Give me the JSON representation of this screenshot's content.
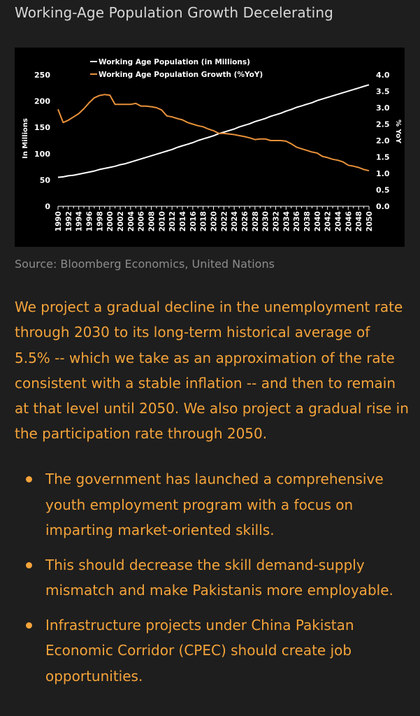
{
  "page": {
    "title": "Working-Age Population Growth Decelerating",
    "source": "Source: Bloomberg Economics, United Nations",
    "paragraph": "We project a gradual decline in the unemployment rate through 2030 to its long-term historical average of 5.5% -- which we take as an approximation of the rate consistent with a stable inflation -- and then to remain at that level until 2050. We also project a gradual rise in the participation rate through 2050.",
    "bullets": [
      "The government has launched a comprehensive youth employment program with a focus on imparting market-oriented skills.",
      "This should decrease the skill demand-supply mismatch and make Pakistanis more employable.",
      "Infrastructure projects under China Pakistan Economic Corridor (CPEC) should create job opportunities."
    ]
  },
  "colors": {
    "background": "#1e1e1e",
    "chart_background": "#000000",
    "accent_text": "#f5a43a",
    "series_population": "#ffffff",
    "series_growth": "#e8913a"
  },
  "chart_data": {
    "type": "line",
    "title": "",
    "x": [
      1990,
      1991,
      1992,
      1993,
      1994,
      1995,
      1996,
      1997,
      1998,
      1999,
      2000,
      2001,
      2002,
      2003,
      2004,
      2005,
      2006,
      2007,
      2008,
      2009,
      2010,
      2011,
      2012,
      2013,
      2014,
      2015,
      2016,
      2017,
      2018,
      2019,
      2020,
      2021,
      2022,
      2023,
      2024,
      2025,
      2026,
      2027,
      2028,
      2029,
      2030,
      2031,
      2032,
      2033,
      2034,
      2035,
      2036,
      2037,
      2038,
      2039,
      2040,
      2041,
      2042,
      2043,
      2044,
      2045,
      2046,
      2047,
      2048,
      2049,
      2050
    ],
    "x_tick_labels": [
      "1990",
      "1992",
      "1994",
      "1996",
      "1998",
      "2000",
      "2002",
      "2004",
      "2006",
      "2008",
      "2010",
      "2012",
      "2014",
      "2016",
      "2018",
      "2020",
      "2022",
      "2024",
      "2026",
      "2028",
      "2030",
      "2032",
      "2034",
      "2036",
      "2038",
      "2040",
      "2042",
      "2044",
      "2046",
      "2048",
      "2050"
    ],
    "series": [
      {
        "name": "Working Age Population (in Millions)",
        "axis": "left",
        "color": "#ffffff",
        "values": [
          55,
          56,
          58,
          59,
          61,
          63,
          65,
          67,
          70,
          72,
          74,
          76,
          79,
          81,
          84,
          87,
          90,
          93,
          96,
          99,
          102,
          105,
          108,
          112,
          115,
          118,
          121,
          125,
          128,
          131,
          134,
          138,
          141,
          144,
          147,
          151,
          154,
          157,
          161,
          164,
          167,
          171,
          174,
          177,
          181,
          184,
          188,
          191,
          194,
          197,
          201,
          204,
          207,
          210,
          213,
          216,
          219,
          222,
          225,
          228,
          231
        ]
      },
      {
        "name": "Working Age Population Growth (%YoY)",
        "axis": "right",
        "color": "#e8913a",
        "values": [
          2.95,
          2.55,
          2.62,
          2.72,
          2.82,
          2.97,
          3.15,
          3.3,
          3.37,
          3.4,
          3.38,
          3.1,
          3.1,
          3.1,
          3.1,
          3.13,
          3.05,
          3.05,
          3.03,
          3.0,
          2.93,
          2.75,
          2.72,
          2.67,
          2.63,
          2.55,
          2.5,
          2.45,
          2.42,
          2.35,
          2.3,
          2.22,
          2.22,
          2.2,
          2.18,
          2.15,
          2.12,
          2.08,
          2.03,
          2.05,
          2.05,
          2.0,
          2.0,
          2.0,
          1.98,
          1.9,
          1.8,
          1.75,
          1.7,
          1.65,
          1.62,
          1.52,
          1.48,
          1.43,
          1.4,
          1.35,
          1.25,
          1.22,
          1.18,
          1.12,
          1.08
        ]
      }
    ],
    "ylabel": "In Millions",
    "ylabel_right": "% YoY",
    "ylim": [
      0,
      250
    ],
    "ylim_right": [
      0.0,
      4.0
    ],
    "y_ticks": [
      "0",
      "50",
      "100",
      "150",
      "200",
      "250"
    ],
    "y_ticks_right": [
      "0.0",
      "0.5",
      "1.0",
      "1.5",
      "2.0",
      "2.5",
      "3.0",
      "3.5",
      "4.0"
    ],
    "legend_position": "top-center",
    "grid": false
  }
}
